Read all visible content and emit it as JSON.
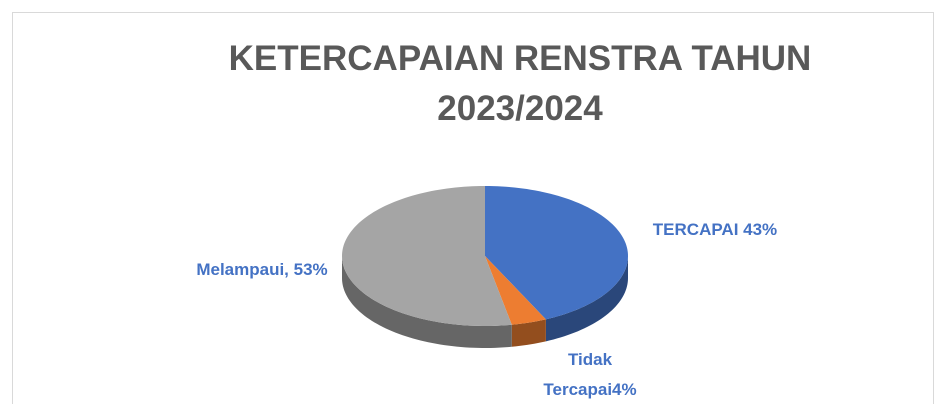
{
  "chart_data": {
    "type": "pie",
    "title": "KETERCAPAIAN RENSTRA TAHUN 2023/2024",
    "values": [
      43,
      4,
      53
    ],
    "value_labels": [
      "TERCAPAI 43%",
      "Tidak Tercapai4%",
      "Melampaui, 53%"
    ],
    "colors": [
      "#4472c4",
      "#ed7d31",
      "#a5a5a5"
    ]
  }
}
